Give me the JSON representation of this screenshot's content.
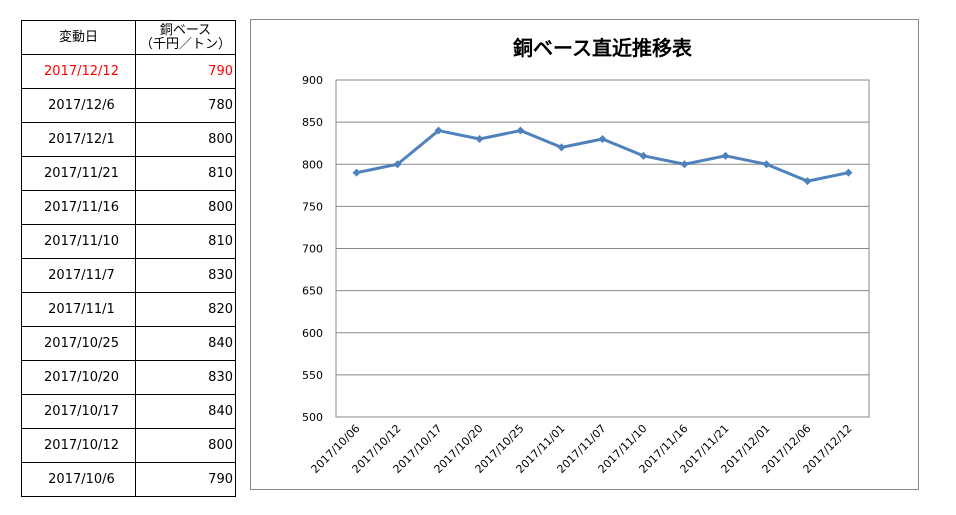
{
  "table": {
    "header": {
      "date_label": "変動日",
      "price_label_line1": "銅ベース",
      "price_label_line2": "（千円／トン）"
    },
    "rows": [
      {
        "date": "2017/12/12",
        "price": "790",
        "highlight": true
      },
      {
        "date": "2017/12/6",
        "price": "780",
        "highlight": false
      },
      {
        "date": "2017/12/1",
        "price": "800",
        "highlight": false
      },
      {
        "date": "2017/11/21",
        "price": "810",
        "highlight": false
      },
      {
        "date": "2017/11/16",
        "price": "800",
        "highlight": false
      },
      {
        "date": "2017/11/10",
        "price": "810",
        "highlight": false
      },
      {
        "date": "2017/11/7",
        "price": "830",
        "highlight": false
      },
      {
        "date": "2017/11/1",
        "price": "820",
        "highlight": false
      },
      {
        "date": "2017/10/25",
        "price": "840",
        "highlight": false
      },
      {
        "date": "2017/10/20",
        "price": "830",
        "highlight": false
      },
      {
        "date": "2017/10/17",
        "price": "840",
        "highlight": false
      },
      {
        "date": "2017/10/12",
        "price": "800",
        "highlight": false
      },
      {
        "date": "2017/10/6",
        "price": "790",
        "highlight": false
      }
    ],
    "highlight_color": "#ff0000"
  },
  "chart_data": {
    "type": "line",
    "title": "銅ベース直近推移表",
    "xlabel": "",
    "ylabel": "",
    "categories": [
      "2017/10/06",
      "2017/10/12",
      "2017/10/17",
      "2017/10/20",
      "2017/10/25",
      "2017/11/01",
      "2017/11/07",
      "2017/11/10",
      "2017/11/16",
      "2017/11/21",
      "2017/12/01",
      "2017/12/06",
      "2017/12/12"
    ],
    "series": [
      {
        "values": [
          790,
          800,
          840,
          830,
          840,
          820,
          830,
          810,
          800,
          810,
          800,
          780,
          790
        ],
        "color": "#4f81bd"
      }
    ],
    "ylim": [
      500,
      900
    ],
    "yticks": [
      500,
      550,
      600,
      650,
      700,
      750,
      800,
      850,
      900
    ],
    "grid": true,
    "marker": "diamond"
  }
}
